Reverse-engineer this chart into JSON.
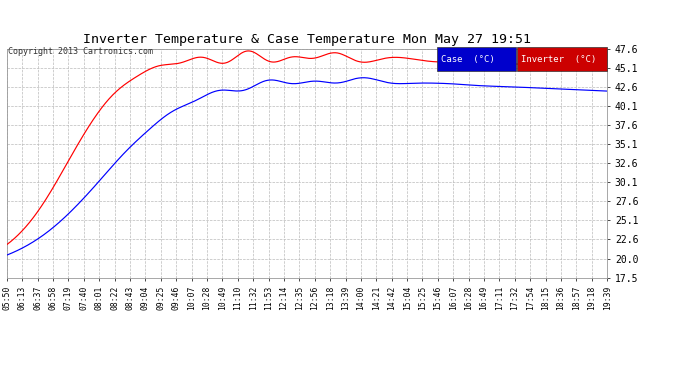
{
  "title": "Inverter Temperature & Case Temperature Mon May 27 19:51",
  "copyright": "Copyright 2013 Cartronics.com",
  "case_color": "#0000ff",
  "inverter_color": "#ff0000",
  "bg_color": "#ffffff",
  "plot_bg_color": "#ffffff",
  "grid_color": "#bbbbbb",
  "ylim": [
    17.5,
    47.6
  ],
  "yticks": [
    17.5,
    20.0,
    22.6,
    25.1,
    27.6,
    30.1,
    32.6,
    35.1,
    37.6,
    40.1,
    42.6,
    45.1,
    47.6
  ],
  "xtick_labels": [
    "05:50",
    "06:13",
    "06:37",
    "06:58",
    "07:19",
    "07:40",
    "08:01",
    "08:22",
    "08:43",
    "09:04",
    "09:25",
    "09:46",
    "10:07",
    "10:28",
    "10:49",
    "11:10",
    "11:32",
    "11:53",
    "12:14",
    "12:35",
    "12:56",
    "13:18",
    "13:39",
    "14:00",
    "14:21",
    "14:42",
    "15:04",
    "15:25",
    "15:46",
    "16:07",
    "16:28",
    "16:49",
    "17:11",
    "17:32",
    "17:54",
    "18:15",
    "18:36",
    "18:57",
    "19:18",
    "19:39"
  ],
  "legend_case_label": "Case  (°C)",
  "legend_inverter_label": "Inverter  (°C)",
  "legend_case_bg": "#0000cc",
  "legend_inverter_bg": "#cc0000"
}
